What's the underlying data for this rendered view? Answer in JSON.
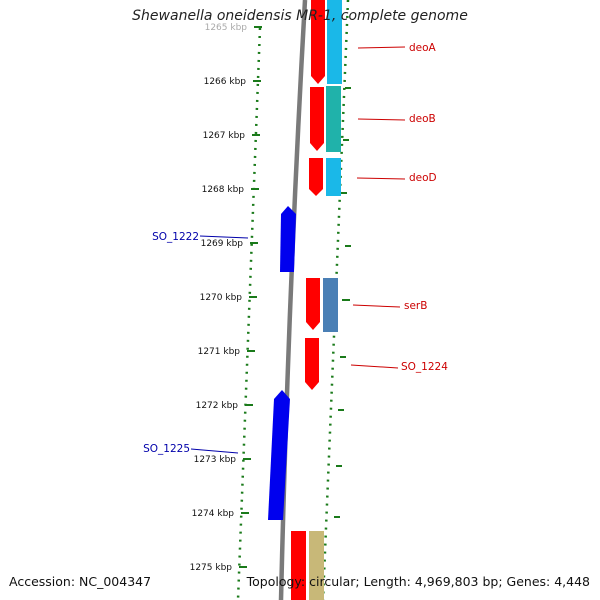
{
  "title": "Shewanella oneidensis MR-1, complete genome",
  "footer": {
    "accession": "Accession: NC_004347",
    "summary": "Topology: circular; Length: 4,969,803 bp; Genes: 4,448"
  },
  "scale": {
    "unit": "kbp",
    "ticks": [
      "1265 kbp",
      "1266 kbp",
      "1267 kbp",
      "1268 kbp",
      "1269 kbp",
      "1270 kbp",
      "1271 kbp",
      "1272 kbp",
      "1273 kbp",
      "1274 kbp",
      "1275 kbp"
    ]
  },
  "genes": [
    {
      "name": "deoA",
      "strand": "forward",
      "label_color": "#cc0000"
    },
    {
      "name": "deoB",
      "strand": "forward",
      "label_color": "#cc0000"
    },
    {
      "name": "deoD",
      "strand": "forward",
      "label_color": "#cc0000"
    },
    {
      "name": "SO_1222",
      "strand": "reverse",
      "label_color": "#0000aa"
    },
    {
      "name": "serB",
      "strand": "forward",
      "label_color": "#cc0000"
    },
    {
      "name": "SO_1224",
      "strand": "forward",
      "label_color": "#cc0000"
    },
    {
      "name": "SO_1225",
      "strand": "reverse",
      "label_color": "#0000aa"
    }
  ],
  "colors": {
    "forward_cds": "#ff0000",
    "reverse_cds": "#0000ee",
    "backbone": "#808080",
    "gc_dots": "#1a7a1a",
    "cog_cyan": "#1ab8e8",
    "cog_teal": "#20b2aa",
    "cog_steel": "#4a7fb5",
    "cog_khaki": "#c8b878"
  }
}
